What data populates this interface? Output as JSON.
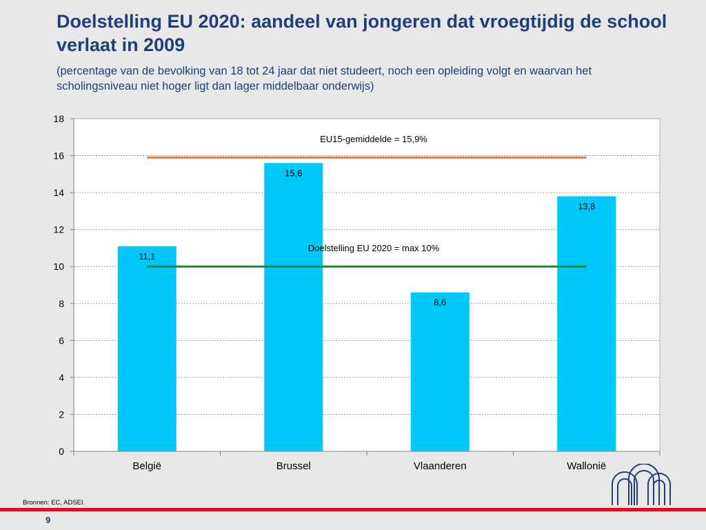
{
  "slide": {
    "title": "Doelstelling EU 2020: aandeel van jongeren dat vroegtijdig de school verlaat in 2009",
    "subtitle": "(percentage van de bevolking van 18 tot 24 jaar dat niet studeert, noch een opleiding volgt en waarvan het scholingsniveau niet hoger ligt dan lager middelbaar onderwijs)",
    "source": "Bronnen: EC, ADSEI.",
    "page_number": "9",
    "colors": {
      "title": "#1f3f7a",
      "background": "#e8e8e8",
      "red_rule": "#e8091f"
    }
  },
  "chart_data": {
    "type": "bar",
    "categories": [
      "België",
      "Brussel",
      "Vlaanderen",
      "Wallonië"
    ],
    "values": [
      11.1,
      15.6,
      8.6,
      13.8
    ],
    "value_labels": [
      "11,1",
      "15,6",
      "8,6",
      "13,8"
    ],
    "ylim": [
      0,
      18
    ],
    "yticks": [
      0,
      2,
      4,
      6,
      8,
      10,
      12,
      14,
      16,
      18
    ],
    "grid": true,
    "bar_color": "#00c8f8",
    "reference_lines": [
      {
        "value": 15.9,
        "label": "EU15-gemiddelde = 15,9%",
        "color": "#f07a2a"
      },
      {
        "value": 10,
        "label": "Doelstelling EU 2020 = max 10%",
        "color": "#1a8a2a"
      }
    ]
  }
}
